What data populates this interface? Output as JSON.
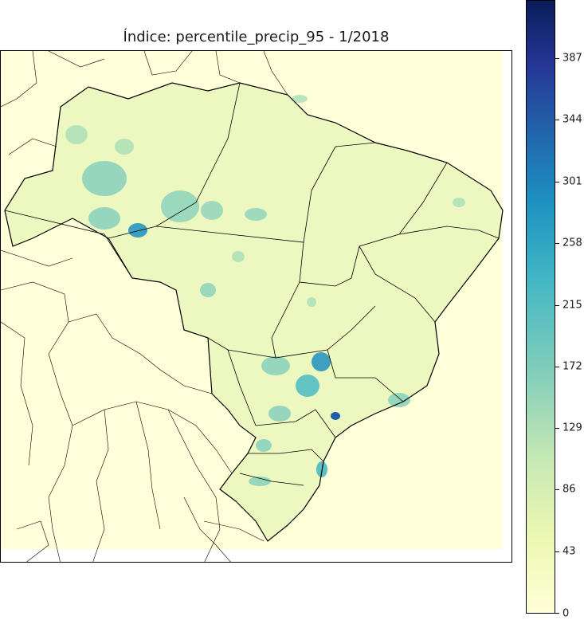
{
  "title": "Índice: percentile_precip_95 - 1/2018",
  "colorbar": {
    "colormap": "YlGnBu",
    "min": 0,
    "max": 430,
    "ticks": [
      "0",
      "43",
      "86",
      "129",
      "172",
      "215",
      "258",
      "301",
      "344",
      "387"
    ]
  },
  "colors": {
    "background": "#ffffd9",
    "boundary": "#000000",
    "low": "#edf8b1",
    "mid": "#7fcdbb",
    "high": "#1d91c0",
    "max": "#081d58"
  }
}
